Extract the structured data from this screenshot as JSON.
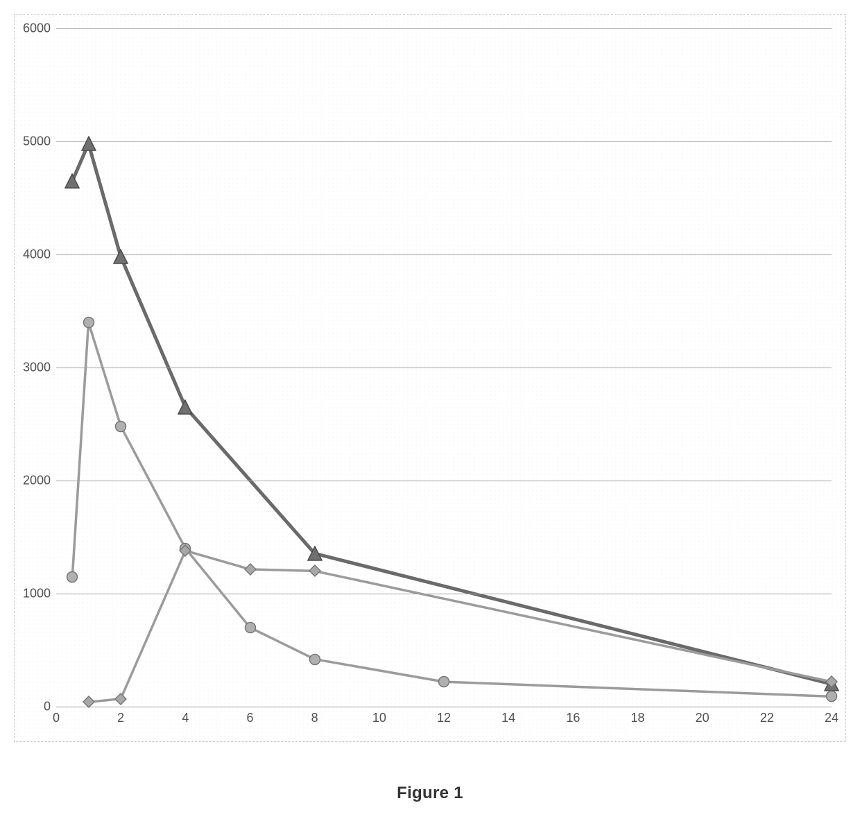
{
  "caption": "Figure 1",
  "chart": {
    "type": "line",
    "background_color": "#ffffff",
    "grid_color": "#a0a0a0",
    "border_style": "dotted",
    "label_fontsize": 18,
    "label_color": "#505050",
    "xlim": [
      0,
      24
    ],
    "ylim": [
      0,
      6000
    ],
    "x_ticks": [
      0,
      2,
      4,
      6,
      8,
      10,
      12,
      14,
      16,
      18,
      20,
      22,
      24
    ],
    "y_ticks": [
      0,
      1000,
      2000,
      3000,
      4000,
      5000,
      6000
    ],
    "series": [
      {
        "name": "Series A (triangle)",
        "marker": "triangle",
        "marker_size": 22,
        "line_width": 5,
        "line_color": "#6a6a6a",
        "marker_fill": "#707070",
        "marker_stroke": "#4a4a4a",
        "points": [
          [
            0.5,
            4650
          ],
          [
            1,
            4980
          ],
          [
            2,
            3980
          ],
          [
            4,
            2650
          ],
          [
            8,
            1355
          ],
          [
            24,
            200
          ]
        ]
      },
      {
        "name": "Series B (circle)",
        "marker": "circle",
        "marker_size": 18,
        "line_width": 3.5,
        "line_color": "#9b9b9b",
        "marker_fill": "#b0b0b0",
        "marker_stroke": "#777777",
        "points": [
          [
            0.5,
            1150
          ],
          [
            1,
            3400
          ],
          [
            2,
            2480
          ],
          [
            4,
            1400
          ],
          [
            6,
            700
          ],
          [
            8,
            420
          ],
          [
            12,
            220
          ],
          [
            24,
            90
          ]
        ]
      },
      {
        "name": "Series C (diamond)",
        "marker": "diamond",
        "marker_size": 18,
        "line_width": 3.5,
        "line_color": "#9b9b9b",
        "marker_fill": "#a8a8a8",
        "marker_stroke": "#777777",
        "points": [
          [
            1,
            40
          ],
          [
            2,
            70
          ],
          [
            4,
            1380
          ],
          [
            6,
            1215
          ],
          [
            8,
            1200
          ],
          [
            24,
            220
          ]
        ]
      }
    ]
  }
}
